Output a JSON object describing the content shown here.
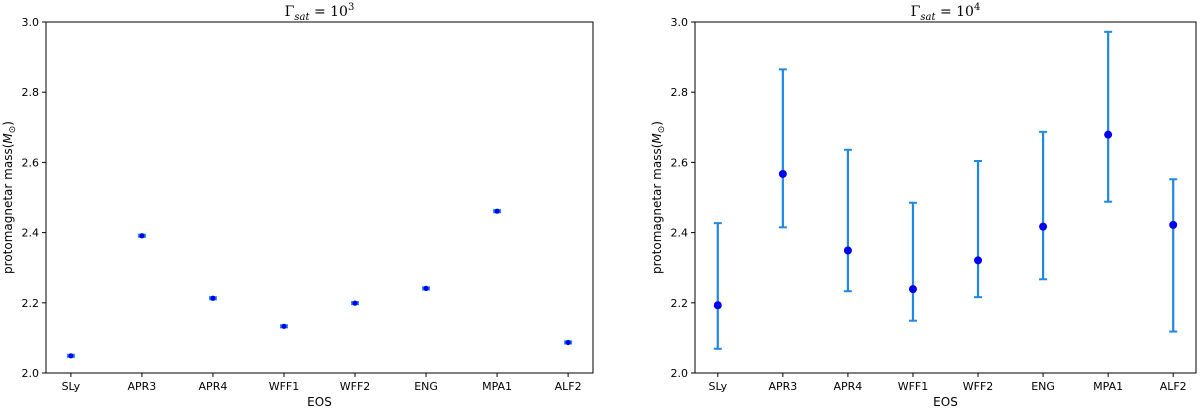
{
  "chart_data": [
    {
      "type": "scatter",
      "title_base": "Γ",
      "title_sub": "sat",
      "title_eq": " = 10",
      "title_sup": "3",
      "xlabel": "EOS",
      "ylabel_main": "protomagnetar mass(",
      "ylabel_sym": "M",
      "ylabel_sub": "⊙",
      "ylabel_close": ")",
      "ylim": [
        2.0,
        3.0
      ],
      "yticks": [
        "2.0",
        "2.2",
        "2.4",
        "2.6",
        "2.8",
        "3.0"
      ],
      "categories": [
        "SLy",
        "APR3",
        "APR4",
        "WFF1",
        "WFF2",
        "ENG",
        "MPA1",
        "ALF2"
      ],
      "values": [
        2.049,
        2.391,
        2.213,
        2.133,
        2.199,
        2.241,
        2.461,
        2.087
      ],
      "err_low": [
        0.003,
        0.003,
        0.003,
        0.003,
        0.003,
        0.003,
        0.003,
        0.003
      ],
      "err_high": [
        0.003,
        0.003,
        0.003,
        0.003,
        0.003,
        0.003,
        0.003,
        0.003
      ],
      "marker_color": "#0000ee",
      "error_color": "#1e88e5"
    },
    {
      "type": "scatter",
      "title_base": "Γ",
      "title_sub": "sat",
      "title_eq": " = 10",
      "title_sup": "4",
      "xlabel": "EOS",
      "ylabel_main": "protomagnetar mass(",
      "ylabel_sym": "M",
      "ylabel_sub": "⊙",
      "ylabel_close": ")",
      "ylim": [
        2.0,
        3.0
      ],
      "yticks": [
        "2.0",
        "2.2",
        "2.4",
        "2.6",
        "2.8",
        "3.0"
      ],
      "categories": [
        "SLy",
        "APR3",
        "APR4",
        "WFF1",
        "WFF2",
        "ENG",
        "MPA1",
        "ALF2"
      ],
      "values": [
        2.193,
        2.567,
        2.349,
        2.239,
        2.321,
        2.417,
        2.679,
        2.422
      ],
      "err_low": [
        0.124,
        0.152,
        0.116,
        0.09,
        0.105,
        0.15,
        0.191,
        0.304
      ],
      "err_high": [
        0.234,
        0.298,
        0.287,
        0.246,
        0.283,
        0.27,
        0.293,
        0.13
      ],
      "marker_color": "#0000ee",
      "error_color": "#1e88e5"
    }
  ]
}
